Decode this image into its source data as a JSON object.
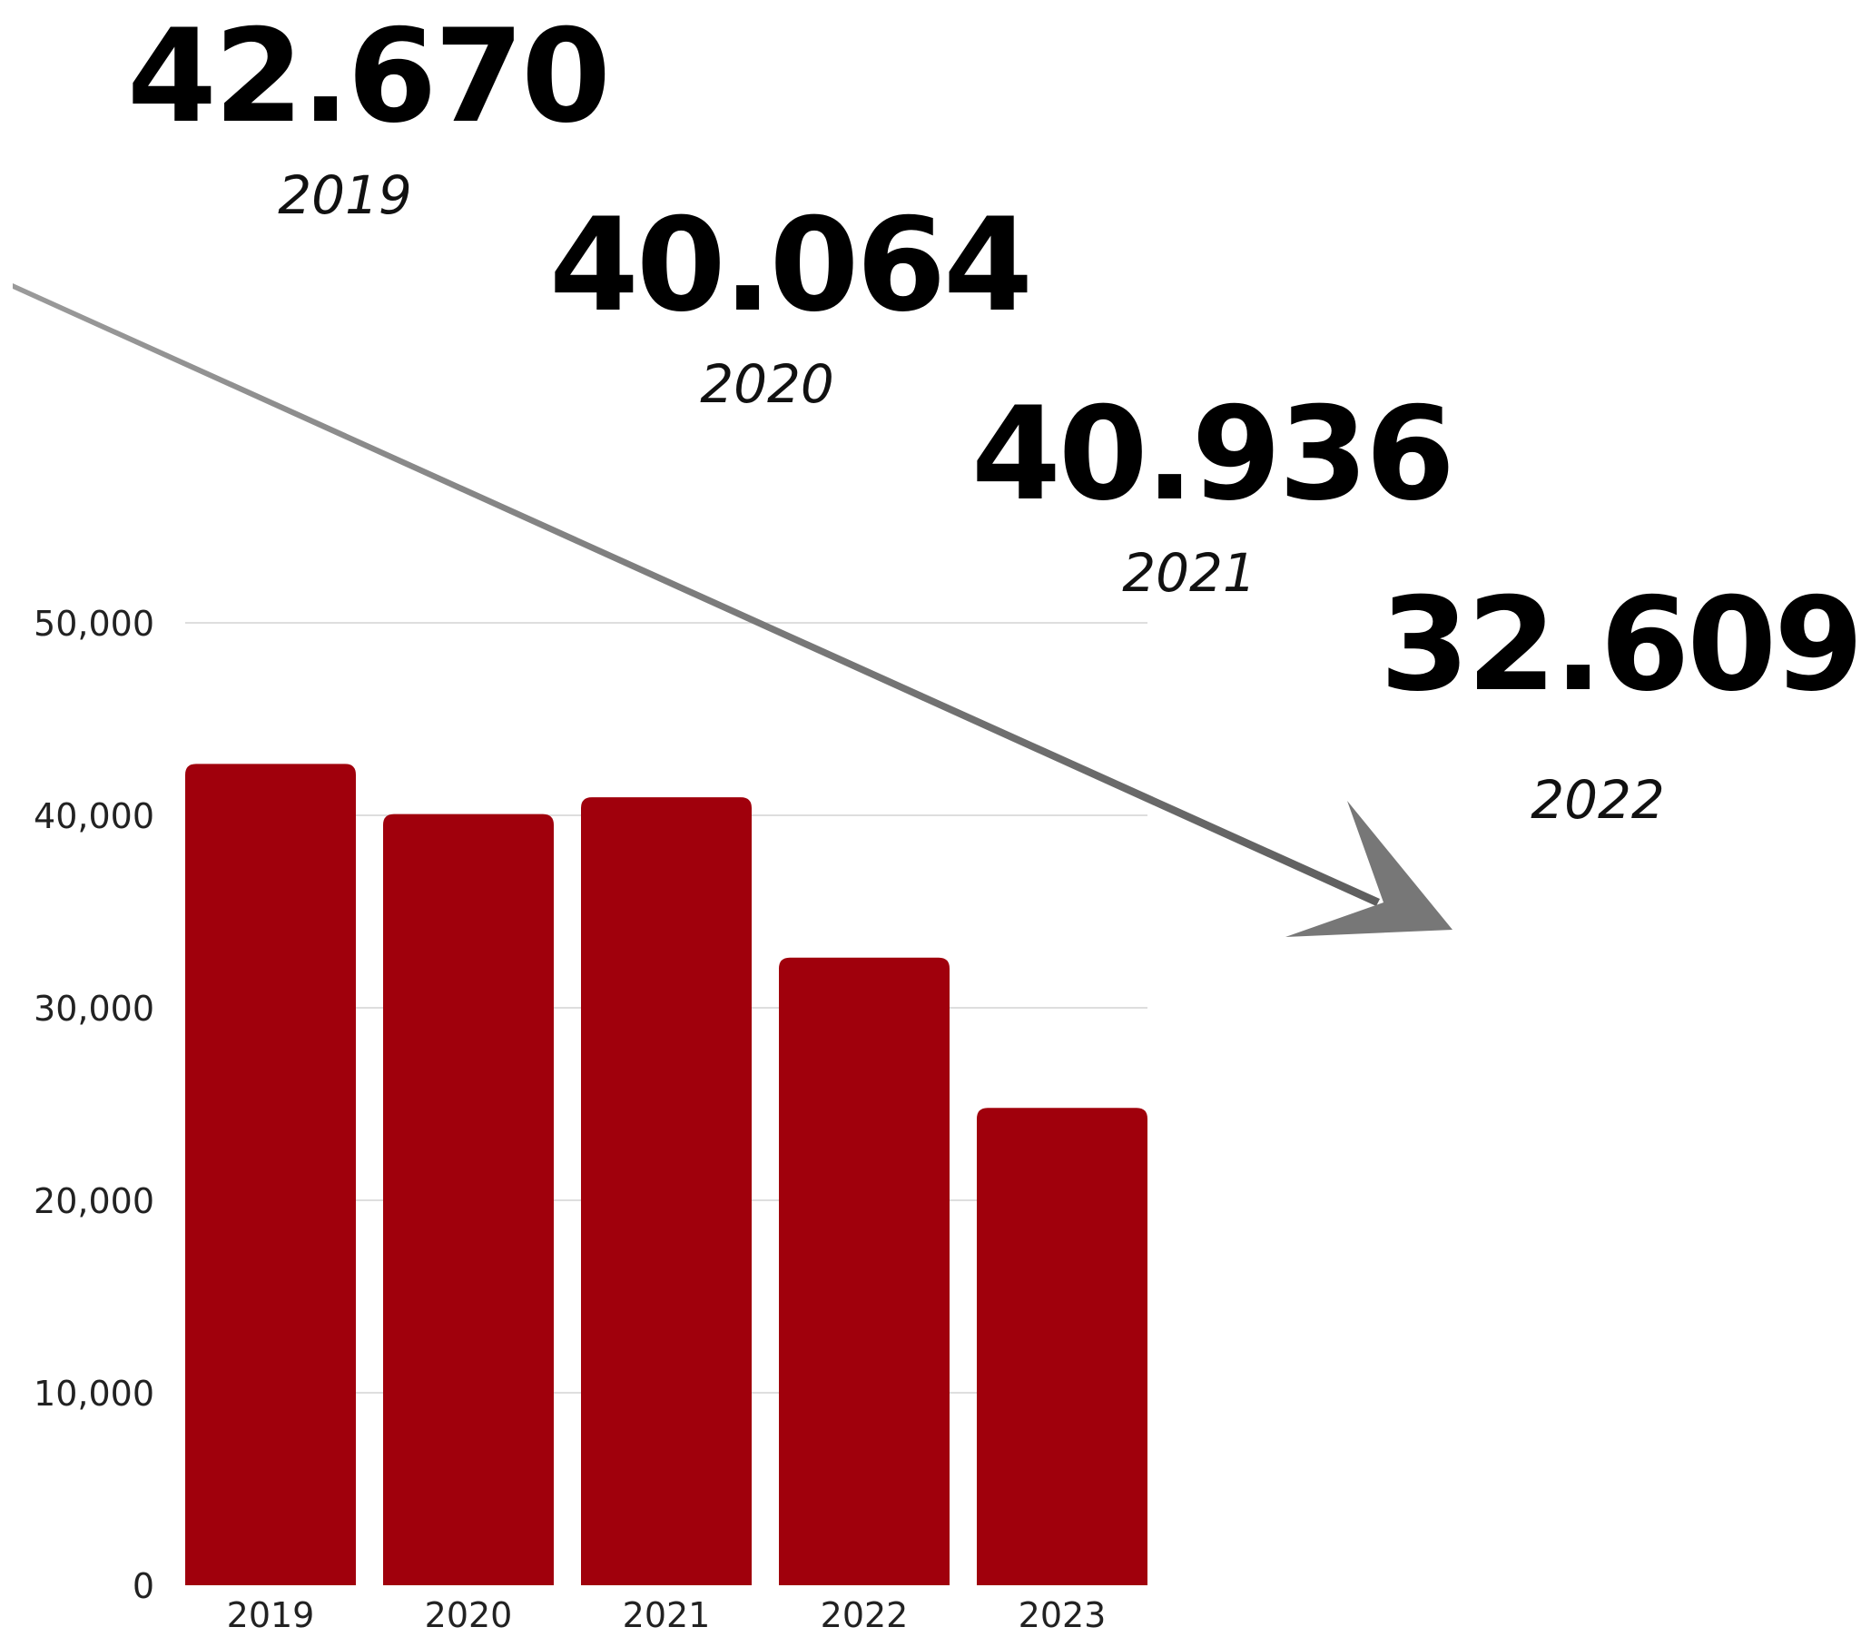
{
  "chart_data": {
    "type": "bar",
    "categories": [
      "2019",
      "2020",
      "2021",
      "2022",
      "2023"
    ],
    "values": [
      42670,
      40064,
      40936,
      32609,
      24800
    ],
    "title": "",
    "xlabel": "",
    "ylabel": "",
    "ylim": [
      0,
      50000
    ],
    "yticks": [
      "0",
      "10,000",
      "20,000",
      "30,000",
      "40,000",
      "50,000"
    ],
    "grid": true,
    "bar_color": "#a0000c",
    "callouts": [
      {
        "value": "42.670",
        "year": "2019"
      },
      {
        "value": "40.064",
        "year": "2020"
      },
      {
        "value": "40.936",
        "year": "2021"
      },
      {
        "value": "32.609",
        "year": "2022"
      }
    ],
    "trend_arrow": {
      "direction": "down",
      "color": "#777777"
    }
  }
}
